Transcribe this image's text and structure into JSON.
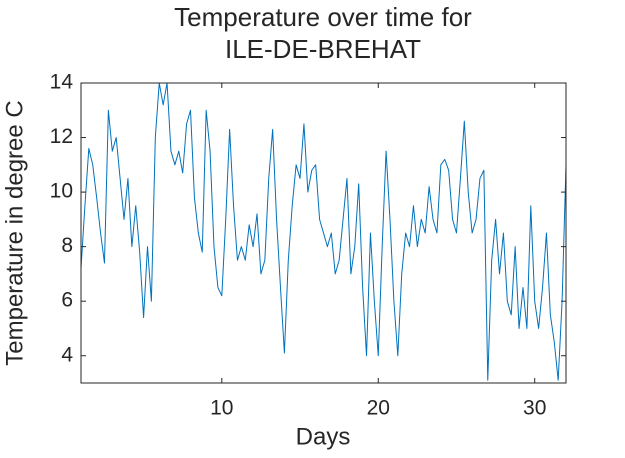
{
  "chart_data": {
    "type": "line",
    "title": [
      "Temperature over time for",
      "ILE-DE-BREHAT"
    ],
    "xlabel": "Days",
    "ylabel": "Temperature in degree C",
    "x": [
      1,
      1.25,
      1.5,
      1.75,
      2,
      2.25,
      2.5,
      2.75,
      3,
      3.25,
      3.5,
      3.75,
      4,
      4.25,
      4.5,
      4.75,
      5,
      5.25,
      5.5,
      5.75,
      6,
      6.25,
      6.5,
      6.75,
      7,
      7.25,
      7.5,
      7.75,
      8,
      8.25,
      8.5,
      8.75,
      9,
      9.25,
      9.5,
      9.75,
      10,
      10.25,
      10.5,
      10.75,
      11,
      11.25,
      11.5,
      11.75,
      12,
      12.25,
      12.5,
      12.75,
      13,
      13.25,
      13.5,
      13.75,
      14,
      14.25,
      14.5,
      14.75,
      15,
      15.25,
      15.5,
      15.75,
      16,
      16.25,
      16.5,
      16.75,
      17,
      17.25,
      17.5,
      17.75,
      18,
      18.25,
      18.5,
      18.75,
      19,
      19.25,
      19.5,
      19.75,
      20,
      20.25,
      20.5,
      20.75,
      21,
      21.25,
      21.5,
      21.75,
      22,
      22.25,
      22.5,
      22.75,
      23,
      23.25,
      23.5,
      23.75,
      24,
      24.25,
      24.5,
      24.75,
      25,
      25.25,
      25.5,
      25.75,
      26,
      26.25,
      26.5,
      26.75,
      27,
      27.25,
      27.5,
      27.75,
      28,
      28.25,
      28.5,
      28.75,
      29,
      29.25,
      29.5,
      29.75,
      30,
      30.25,
      30.5,
      30.75,
      31,
      31.25,
      31.5,
      31.75,
      32
    ],
    "series": [
      {
        "name": "Temperature",
        "color": "#0072bd",
        "values": [
          7.2,
          9.5,
          11.6,
          11.0,
          9.8,
          8.5,
          7.4,
          13.0,
          11.5,
          12.0,
          10.5,
          9.0,
          10.5,
          8.0,
          9.5,
          7.8,
          5.4,
          8.0,
          6.0,
          12.0,
          14.0,
          13.2,
          14.0,
          11.5,
          11.0,
          11.5,
          10.7,
          12.5,
          13.0,
          9.8,
          8.5,
          7.8,
          13.0,
          11.5,
          8.0,
          6.5,
          6.2,
          9.0,
          12.3,
          9.5,
          7.5,
          8.0,
          7.5,
          8.8,
          8.0,
          9.2,
          7.0,
          7.5,
          10.5,
          12.3,
          9.0,
          6.5,
          4.1,
          7.5,
          9.5,
          11.0,
          10.5,
          12.5,
          10.0,
          10.8,
          11.0,
          9.0,
          8.5,
          8.0,
          8.5,
          7.0,
          7.5,
          9.0,
          10.5,
          7.0,
          8.0,
          10.3,
          6.5,
          4.0,
          8.5,
          6.0,
          4.0,
          8.0,
          11.5,
          9.0,
          6.0,
          4.0,
          7.0,
          8.5,
          8.0,
          9.5,
          8.0,
          9.0,
          8.5,
          10.2,
          9.0,
          8.5,
          11.0,
          11.2,
          10.8,
          9.0,
          8.5,
          10.5,
          12.6,
          10.0,
          8.5,
          9.0,
          10.5,
          10.8,
          3.1,
          7.5,
          9.0,
          7.0,
          8.5,
          6.0,
          5.5,
          8.0,
          5.0,
          6.5,
          5.0,
          9.5,
          6.0,
          5.0,
          6.5,
          8.5,
          5.5,
          4.5,
          3.1,
          6.0,
          11.0
        ]
      }
    ],
    "xlim": [
      1,
      32
    ],
    "ylim": [
      3,
      14
    ],
    "xticks": [
      10,
      20,
      30
    ],
    "yticks": [
      4,
      6,
      8,
      10,
      12,
      14
    ],
    "grid": false
  }
}
